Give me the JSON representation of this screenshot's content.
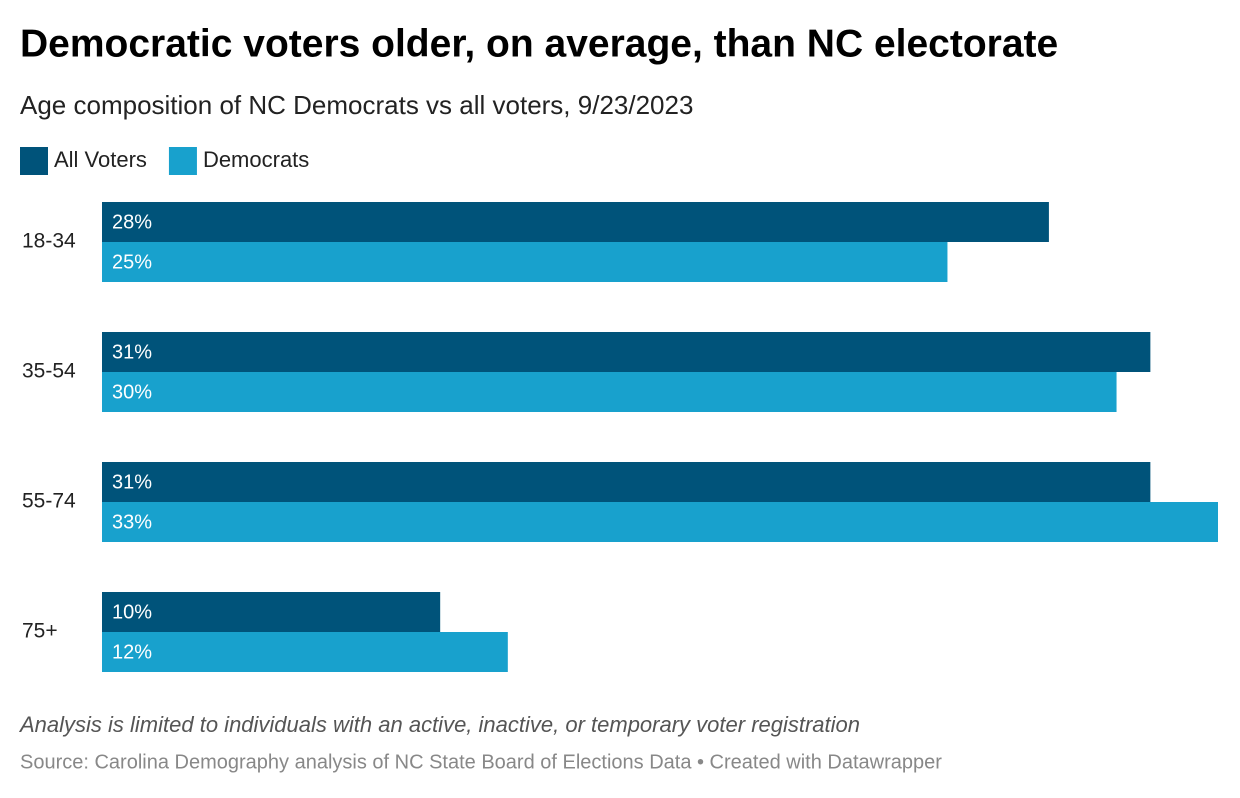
{
  "chart_data": {
    "type": "bar",
    "orientation": "horizontal",
    "title": "Democratic voters older, on average, than NC electorate",
    "subtitle": "Age composition of NC Democrats vs all voters, 9/23/2023",
    "categories": [
      "18-34",
      "35-54",
      "55-74",
      "75+"
    ],
    "series": [
      {
        "name": "All Voters",
        "color": "#00537a",
        "values": [
          28,
          31,
          31,
          10
        ],
        "value_labels": [
          "28%",
          "31%",
          "31%",
          "10%"
        ]
      },
      {
        "name": "Democrats",
        "color": "#18a1cd",
        "values": [
          25,
          30,
          33,
          12
        ],
        "value_labels": [
          "25%",
          "30%",
          "33%",
          "12%"
        ]
      }
    ],
    "xlim": [
      0,
      33
    ],
    "legend": "top-left",
    "note": "Analysis is limited to individuals with an active, inactive, or temporary voter registration",
    "source": "Source: Carolina Demography analysis of NC State Board of Elections Data • Created with Datawrapper"
  }
}
